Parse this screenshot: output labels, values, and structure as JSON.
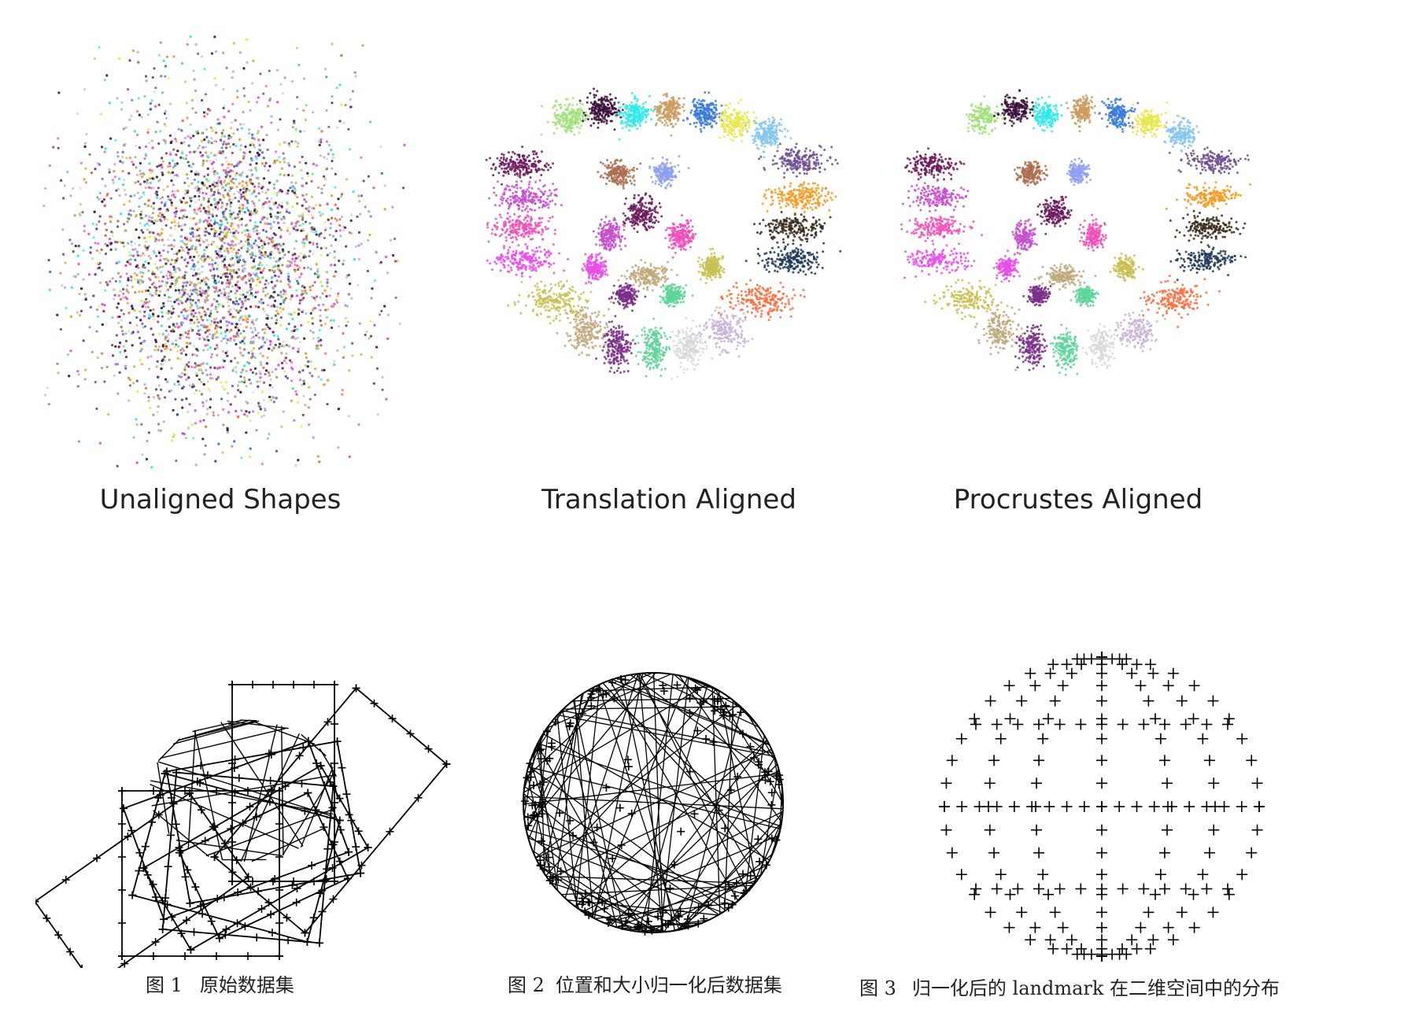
{
  "top_row": {
    "panels": [
      {
        "caption": "Unaligned Shapes",
        "mode": "unaligned"
      },
      {
        "caption": "Translation Aligned",
        "mode": "translation"
      },
      {
        "caption": "Procrustes Aligned",
        "mode": "procrustes"
      }
    ],
    "palette": [
      "#6b1a5c",
      "#c64fcf",
      "#ef4fb8",
      "#e84fe6",
      "#c9bf52",
      "#c0a87a",
      "#7a2f8a",
      "#5fd39a",
      "#d7d9dc",
      "#c9b4d8",
      "#6e4e92",
      "#f29a1f",
      "#3a2a1a",
      "#1e3a5a",
      "#ff6a3a",
      "#a0e07a",
      "#3a0f3a",
      "#33e8e8",
      "#ca9c5f",
      "#3a7ad8",
      "#e8e84f",
      "#85c6ef",
      "#ad6d4f",
      "#8fa0f0"
    ]
  },
  "bottom_row": {
    "captions": [
      {
        "fig": "图 1",
        "text": "原始数据集"
      },
      {
        "fig": "图 2",
        "text": "位置和大小归一化后数据集"
      },
      {
        "fig": "图 3",
        "text": "归一化后的 landmark 在二维空间中的分布"
      }
    ]
  }
}
